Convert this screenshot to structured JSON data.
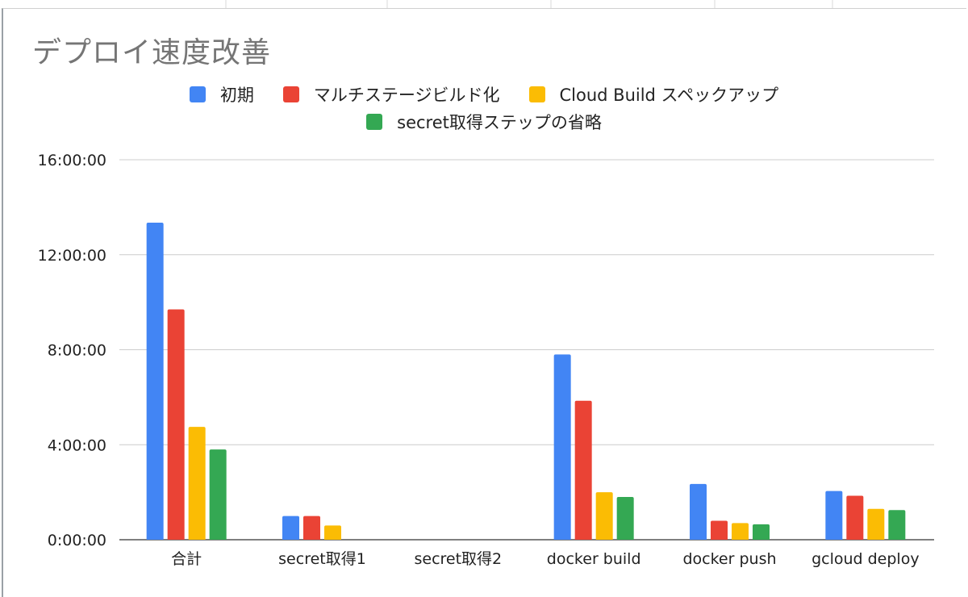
{
  "chart_data": {
    "type": "bar",
    "title": "デプロイ速度改善",
    "xlabel": "",
    "ylabel": "",
    "ylim": [
      0,
      16
    ],
    "yticks": [
      0,
      4,
      8,
      12,
      16
    ],
    "ytick_labels": [
      "0:00:00",
      "4:00:00",
      "8:00:00",
      "12:00:00",
      "16:00:00"
    ],
    "grid": true,
    "legend_position": "top",
    "categories": [
      "合計",
      "secret取得1",
      "secret取得2",
      "docker build",
      "docker push",
      "gcloud deploy"
    ],
    "series": [
      {
        "name": "初期",
        "color": "#4285f4",
        "values": [
          13.35,
          1.0,
          0,
          7.8,
          2.35,
          2.05
        ]
      },
      {
        "name": "マルチステージビルド化",
        "color": "#ea4335",
        "values": [
          9.7,
          1.0,
          0,
          5.85,
          0.8,
          1.85
        ]
      },
      {
        "name": "Cloud Build スペックアップ",
        "color": "#fbbc04",
        "values": [
          4.75,
          0.6,
          0,
          2.0,
          0.7,
          1.3
        ]
      },
      {
        "name": "secret取得ステップの省略",
        "color": "#34a853",
        "values": [
          3.8,
          0,
          0,
          1.8,
          0.65,
          1.25
        ]
      }
    ]
  }
}
